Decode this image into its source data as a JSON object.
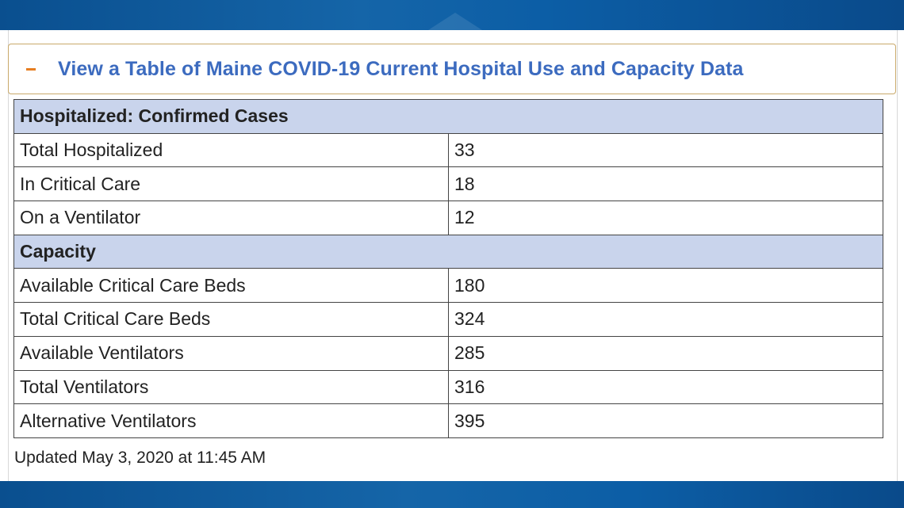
{
  "accordion": {
    "title": "View a Table of Maine COVID-19 Current Hospital Use and Capacity Data",
    "toggle_icon": "minus-icon",
    "accent_color": "#e67e22",
    "title_color": "#3c6bbf"
  },
  "table": {
    "sections": [
      {
        "heading": "Hospitalized: Confirmed Cases",
        "rows": [
          {
            "label": "Total Hospitalized",
            "value": "33"
          },
          {
            "label": "In Critical Care",
            "value": "18"
          },
          {
            "label": "On a Ventilator",
            "value": "12"
          }
        ]
      },
      {
        "heading": "Capacity",
        "rows": [
          {
            "label": "Available Critical Care Beds",
            "value": "180"
          },
          {
            "label": "Total Critical Care Beds",
            "value": "324"
          },
          {
            "label": "Available Ventilators",
            "value": "285"
          },
          {
            "label": "Total Ventilators",
            "value": "316"
          },
          {
            "label": "Alternative Ventilators",
            "value": "395"
          }
        ]
      }
    ],
    "section_color": "#c9d4ec"
  },
  "footer": {
    "updated": "Updated May 3, 2020 at 11:45 AM"
  }
}
